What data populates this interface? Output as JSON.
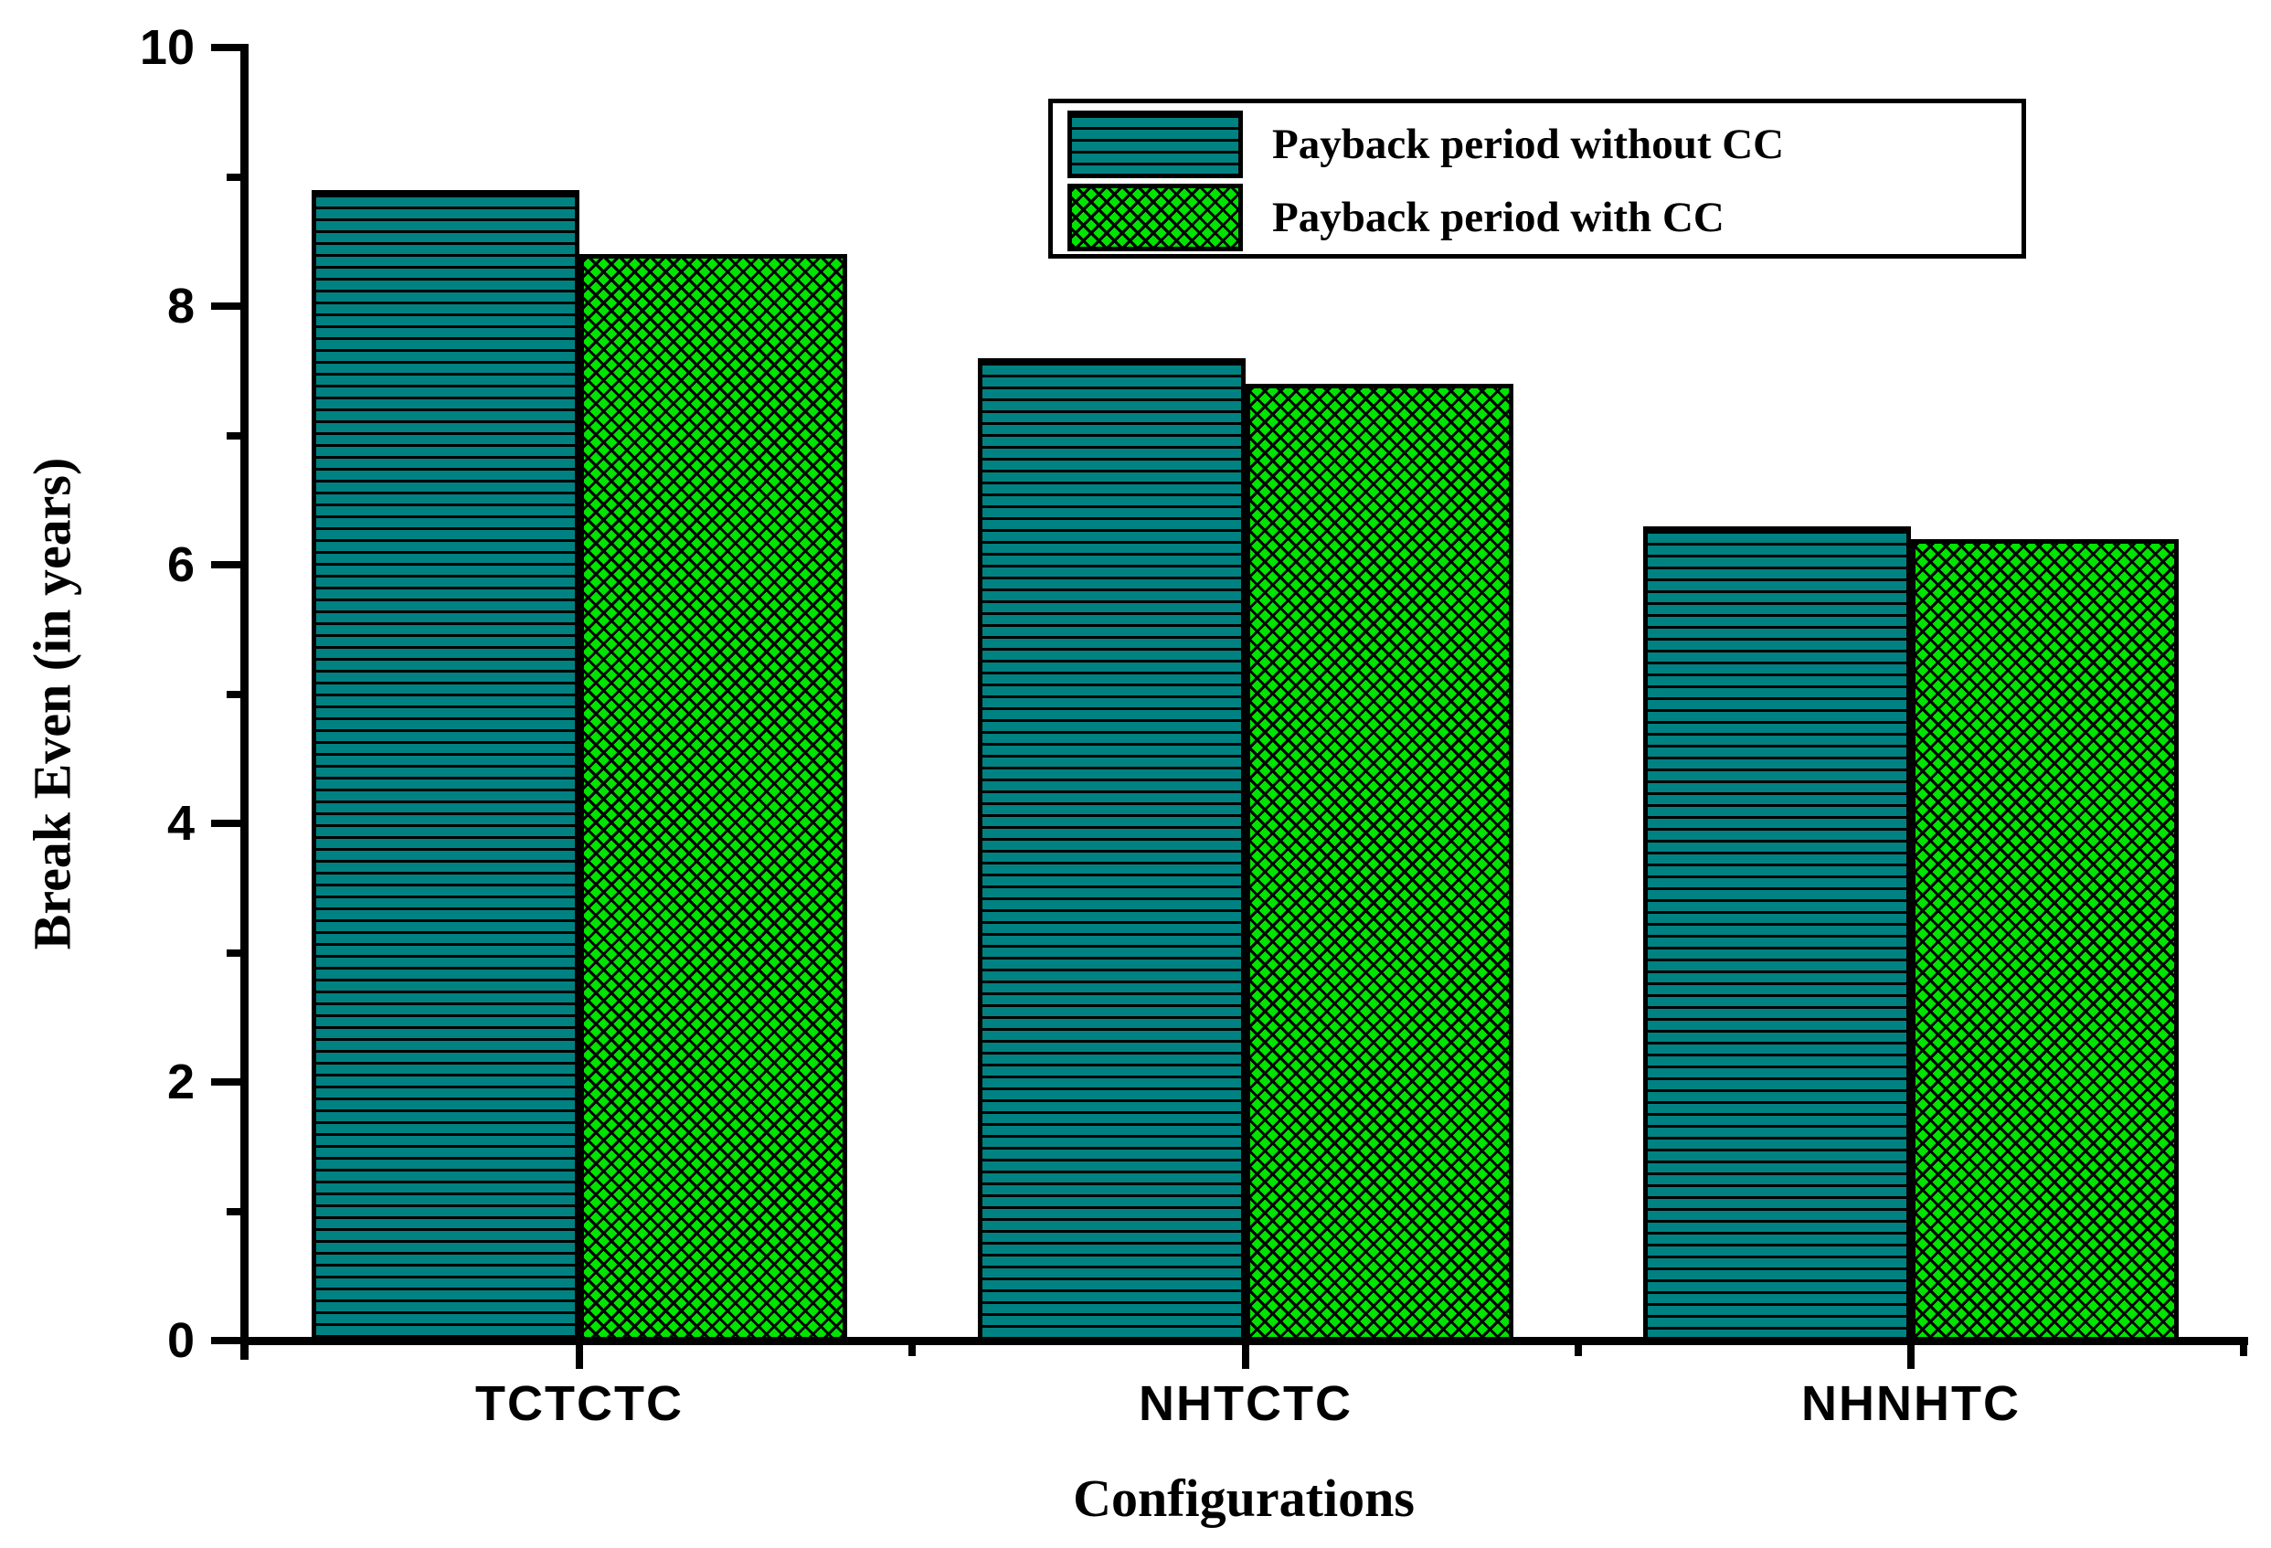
{
  "chart_data": {
    "type": "bar",
    "categories": [
      "TCTCTC",
      "NHTCTC",
      "NHNHTC"
    ],
    "series": [
      {
        "name": "Payback period without CC",
        "values": [
          8.9,
          7.6,
          6.3
        ],
        "color": "#008282",
        "pattern": "hlines"
      },
      {
        "name": "Payback period with CC",
        "values": [
          8.4,
          7.4,
          6.2
        ],
        "color": "#00E400",
        "pattern": "crosshatch"
      }
    ],
    "xlabel": "Configurations",
    "ylabel": "Break Even (in years)",
    "ylim": [
      0,
      10
    ],
    "y_major_ticks": [
      0,
      2,
      4,
      6,
      8,
      10
    ],
    "y_minor_ticks": [
      1,
      3,
      5,
      7,
      9
    ],
    "grid": false,
    "legend_position": "top-right",
    "bar_outline_color": "#000000",
    "axis_color": "#000000"
  }
}
